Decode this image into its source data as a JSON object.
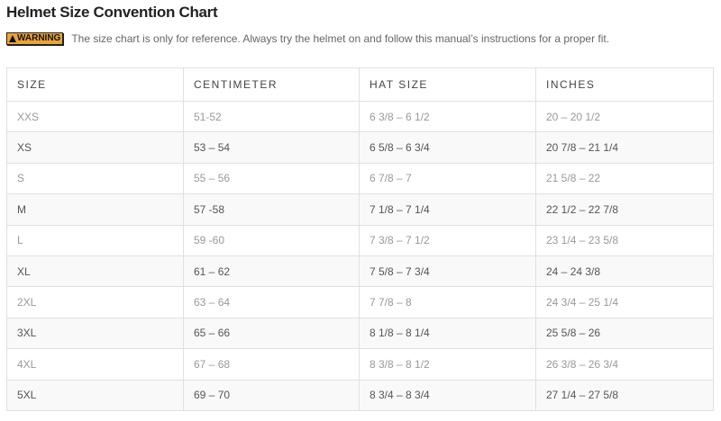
{
  "title": "Helmet Size Convention Chart",
  "warning": {
    "badge": "WARNING",
    "icon": "warning-triangle-icon",
    "badge_color": "#e8a33a",
    "text": "The size chart is only for reference. Always try the helmet on and follow this manual’s instructions for a proper fit."
  },
  "table": {
    "headers": [
      "SIZE",
      "CENTIMETER",
      "HAT SIZE",
      "INCHES"
    ],
    "rows": [
      [
        "XXS",
        "51-52",
        "6 3/8 – 6 1/2",
        "20 – 20 1/2"
      ],
      [
        "XS",
        "53 – 54",
        "6 5/8 – 6 3/4",
        "20 7/8 – 21 1/4"
      ],
      [
        "S",
        "55 – 56",
        "6 7/8 – 7",
        "21 5/8 – 22"
      ],
      [
        "M",
        "57 -58",
        "7 1/8 – 7 1/4",
        "22 1/2 – 22 7/8"
      ],
      [
        "L",
        "59 -60",
        "7 3/8 – 7 1/2",
        "23 1/4 – 23 5/8"
      ],
      [
        "XL",
        "61 – 62",
        "7 5/8 – 7 3/4",
        "24 – 24 3/8"
      ],
      [
        "2XL",
        "63 – 64",
        "7 7/8 – 8",
        "24 3/4 – 25 1/4"
      ],
      [
        "3XL",
        "65 – 66",
        "8 1/8 – 8 1/4",
        "25 5/8 – 26"
      ],
      [
        "4XL",
        "67 – 68",
        "8 3/8 – 8 1/2",
        "26 3/8 – 26 3/4"
      ],
      [
        "5XL",
        "69 – 70",
        "8 3/4 – 8 3/4",
        "27 1/4 – 27 5/8"
      ]
    ]
  }
}
